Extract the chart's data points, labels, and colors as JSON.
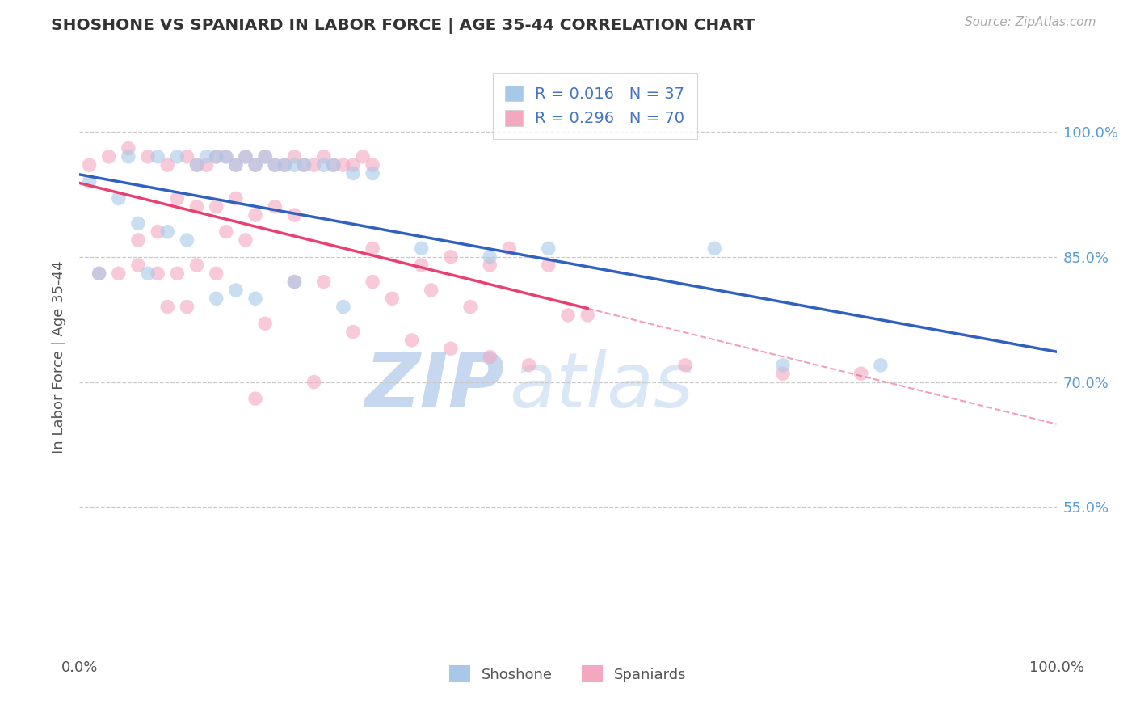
{
  "title": "SHOSHONE VS SPANIARD IN LABOR FORCE | AGE 35-44 CORRELATION CHART",
  "source_text": "Source: ZipAtlas.com",
  "ylabel": "In Labor Force | Age 35-44",
  "xlim": [
    0.0,
    1.0
  ],
  "ylim": [
    0.38,
    1.08
  ],
  "xtick_vals": [
    0.0,
    1.0
  ],
  "xtick_labels": [
    "0.0%",
    "100.0%"
  ],
  "ytick_positions": [
    0.55,
    0.7,
    0.85,
    1.0
  ],
  "ytick_labels": [
    "55.0%",
    "70.0%",
    "85.0%",
    "100.0%"
  ],
  "grid_color": "#c8c8c8",
  "background_color": "#ffffff",
  "shoshone_color": "#a8c8e8",
  "spaniard_color": "#f4a8c0",
  "shoshone_line_color": "#3060c0",
  "spaniard_line_color": "#e84070",
  "R_shoshone": 0.016,
  "N_shoshone": 37,
  "R_spaniard": 0.296,
  "N_spaniard": 70,
  "shoshone_x": [
    0.01,
    0.05,
    0.08,
    0.1,
    0.12,
    0.13,
    0.14,
    0.15,
    0.16,
    0.17,
    0.18,
    0.19,
    0.2,
    0.21,
    0.22,
    0.23,
    0.25,
    0.26,
    0.28,
    0.3,
    0.04,
    0.06,
    0.09,
    0.11,
    0.35,
    0.42,
    0.48,
    0.65,
    0.72,
    0.82,
    0.02,
    0.07,
    0.16,
    0.22,
    0.18,
    0.14,
    0.27
  ],
  "shoshone_y": [
    0.94,
    0.97,
    0.97,
    0.97,
    0.96,
    0.97,
    0.97,
    0.97,
    0.96,
    0.97,
    0.96,
    0.97,
    0.96,
    0.96,
    0.96,
    0.96,
    0.96,
    0.96,
    0.95,
    0.95,
    0.92,
    0.89,
    0.88,
    0.87,
    0.86,
    0.85,
    0.86,
    0.86,
    0.72,
    0.72,
    0.83,
    0.83,
    0.81,
    0.82,
    0.8,
    0.8,
    0.79
  ],
  "spaniard_x": [
    0.01,
    0.03,
    0.05,
    0.07,
    0.09,
    0.11,
    0.12,
    0.13,
    0.14,
    0.15,
    0.16,
    0.17,
    0.18,
    0.19,
    0.2,
    0.21,
    0.22,
    0.23,
    0.24,
    0.25,
    0.26,
    0.27,
    0.28,
    0.29,
    0.3,
    0.1,
    0.12,
    0.14,
    0.16,
    0.18,
    0.2,
    0.22,
    0.06,
    0.08,
    0.15,
    0.17,
    0.3,
    0.35,
    0.38,
    0.42,
    0.44,
    0.48,
    0.02,
    0.04,
    0.06,
    0.08,
    0.1,
    0.12,
    0.14,
    0.22,
    0.25,
    0.3,
    0.32,
    0.36,
    0.4,
    0.5,
    0.52,
    0.62,
    0.72,
    0.8,
    0.09,
    0.11,
    0.19,
    0.28,
    0.34,
    0.38,
    0.42,
    0.46,
    0.24,
    0.18
  ],
  "spaniard_y": [
    0.96,
    0.97,
    0.98,
    0.97,
    0.96,
    0.97,
    0.96,
    0.96,
    0.97,
    0.97,
    0.96,
    0.97,
    0.96,
    0.97,
    0.96,
    0.96,
    0.97,
    0.96,
    0.96,
    0.97,
    0.96,
    0.96,
    0.96,
    0.97,
    0.96,
    0.92,
    0.91,
    0.91,
    0.92,
    0.9,
    0.91,
    0.9,
    0.87,
    0.88,
    0.88,
    0.87,
    0.86,
    0.84,
    0.85,
    0.84,
    0.86,
    0.84,
    0.83,
    0.83,
    0.84,
    0.83,
    0.83,
    0.84,
    0.83,
    0.82,
    0.82,
    0.82,
    0.8,
    0.81,
    0.79,
    0.78,
    0.78,
    0.72,
    0.71,
    0.71,
    0.79,
    0.79,
    0.77,
    0.76,
    0.75,
    0.74,
    0.73,
    0.72,
    0.7,
    0.68
  ],
  "watermark_zip": "ZIP",
  "watermark_atlas": "atlas",
  "marker_size": 160,
  "marker_alpha": 0.6
}
